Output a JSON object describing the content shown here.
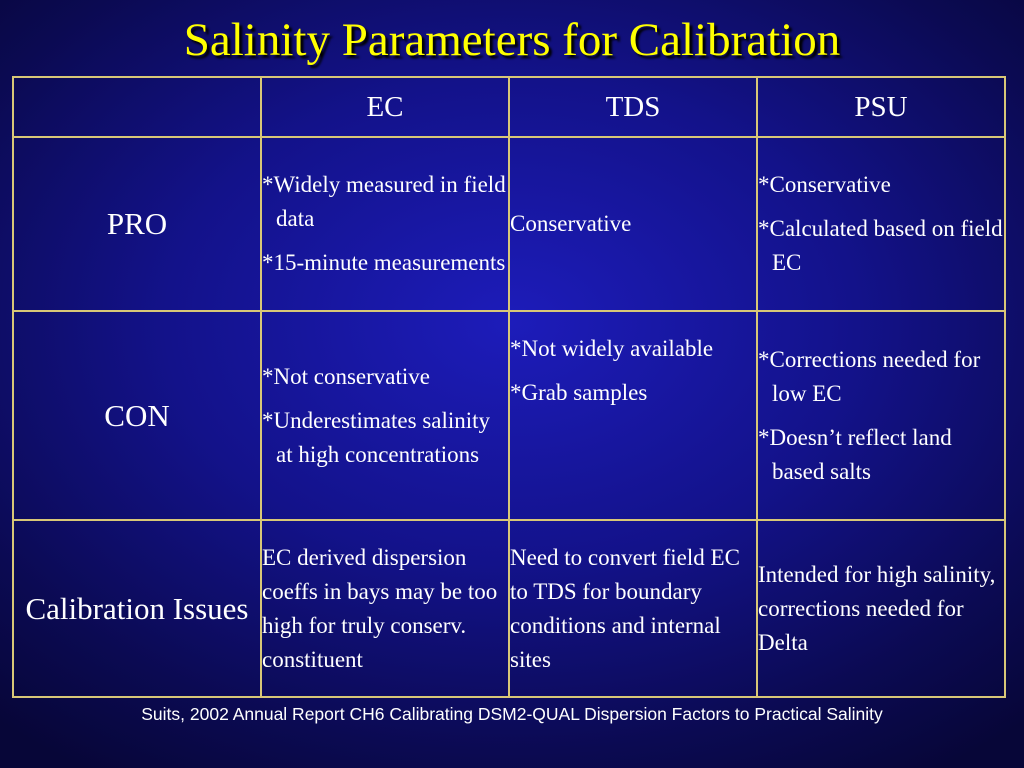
{
  "title": "Salinity Parameters for Calibration",
  "table": {
    "headers": [
      "",
      "EC",
      "TDS",
      "PSU"
    ],
    "rows": [
      {
        "label": "PRO",
        "ec": [
          "*Widely measured in field data",
          "*15-minute measurements"
        ],
        "tds": [
          "Conservative"
        ],
        "psu": [
          "*Conservative",
          "*Calculated based on field EC"
        ]
      },
      {
        "label": "CON",
        "ec": [
          "*Not conservative",
          "*Underestimates salinity at high concentrations"
        ],
        "tds": [
          "*Not widely available",
          "*Grab samples"
        ],
        "psu": [
          "*Corrections needed for low EC",
          "*Doesn’t reflect land based salts"
        ]
      },
      {
        "label": "Calibration Issues",
        "ec": [
          "EC derived dispersion coeffs in bays may be too high for truly conserv. constituent"
        ],
        "tds": [
          "Need to convert field EC to TDS for boundary conditions and internal sites"
        ],
        "psu": [
          "Intended for high salinity, corrections needed for Delta"
        ]
      }
    ]
  },
  "footer": "Suits, 2002 Annual Report CH6 Calibrating DSM2-QUAL Dispersion Factors to Practical Salinity",
  "colors": {
    "background": "#13128a",
    "title": "#ffff00",
    "grid_lines": "#d8c777",
    "text": "#ffffff"
  }
}
